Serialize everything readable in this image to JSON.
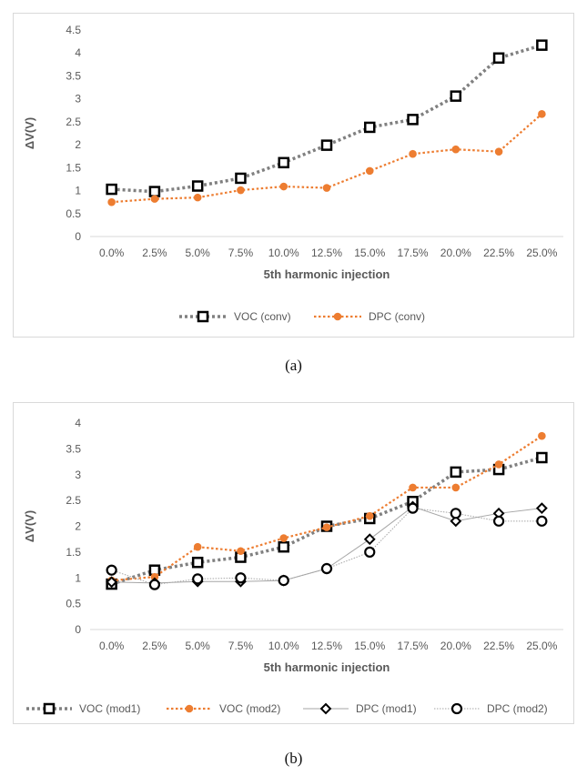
{
  "chart_data": [
    {
      "type": "line",
      "caption": "(a)",
      "xlabel": "5th harmonic injection",
      "ylabel": "ΔV(V)",
      "ylim": [
        0,
        4.5
      ],
      "ytick_step": 0.5,
      "yticks": [
        "0",
        "0.5",
        "1",
        "1.5",
        "2",
        "2.5",
        "3",
        "3.5",
        "4",
        "4.5"
      ],
      "categories": [
        "0.0%",
        "2.5%",
        "5.0%",
        "7.5%",
        "10.0%",
        "12.5%",
        "15.0%",
        "17.5%",
        "20.0%",
        "22.5%",
        "25.0%"
      ],
      "grid": false,
      "legend_position": "bottom",
      "series": [
        {
          "name": "VOC (conv)",
          "values": [
            1.03,
            0.98,
            1.1,
            1.27,
            1.61,
            1.99,
            2.38,
            2.55,
            3.06,
            3.89,
            4.17
          ],
          "color": "#808080",
          "line": "dotted-thick",
          "marker": "hollow-square"
        },
        {
          "name": "DPC (conv)",
          "values": [
            0.75,
            0.82,
            0.85,
            1.01,
            1.09,
            1.06,
            1.43,
            1.8,
            1.9,
            1.85,
            2.67
          ],
          "color": "#ed7d31",
          "line": "dotted",
          "marker": "filled-circle"
        }
      ]
    },
    {
      "type": "line",
      "caption": "(b)",
      "xlabel": "5th harmonic injection",
      "ylabel": "ΔV(V)",
      "ylim": [
        0,
        4
      ],
      "ytick_step": 0.5,
      "yticks": [
        "0",
        "0.5",
        "1",
        "1.5",
        "2",
        "2.5",
        "3",
        "3.5",
        "4"
      ],
      "categories": [
        "0.0%",
        "2.5%",
        "5.0%",
        "7.5%",
        "10.0%",
        "12.5%",
        "15.0%",
        "17.5%",
        "20.0%",
        "22.5%",
        "25.0%"
      ],
      "grid": false,
      "legend_position": "bottom",
      "series": [
        {
          "name": "VOC (mod1)",
          "values": [
            0.88,
            1.15,
            1.3,
            1.4,
            1.6,
            2.0,
            2.15,
            2.48,
            3.05,
            3.1,
            3.33
          ],
          "color": "#808080",
          "line": "dotted-thick",
          "marker": "hollow-square"
        },
        {
          "name": "VOC (mod2)",
          "values": [
            0.95,
            1.02,
            1.6,
            1.52,
            1.77,
            1.98,
            2.2,
            2.75,
            2.75,
            3.2,
            3.75
          ],
          "color": "#ed7d31",
          "line": "dotted",
          "marker": "filled-circle"
        },
        {
          "name": "DPC (mod1)",
          "values": [
            0.92,
            0.9,
            0.93,
            0.93,
            0.95,
            1.18,
            1.75,
            2.38,
            2.1,
            2.25,
            2.35
          ],
          "color": "#a6a6a6",
          "line": "solid-thin",
          "marker": "hollow-diamond"
        },
        {
          "name": "DPC (mod2)",
          "values": [
            1.15,
            0.87,
            0.98,
            1.0,
            0.95,
            1.18,
            1.5,
            2.35,
            2.25,
            2.1,
            2.1
          ],
          "color": "#a6a6a6",
          "line": "dotted-thin",
          "marker": "hollow-circle"
        }
      ]
    }
  ]
}
